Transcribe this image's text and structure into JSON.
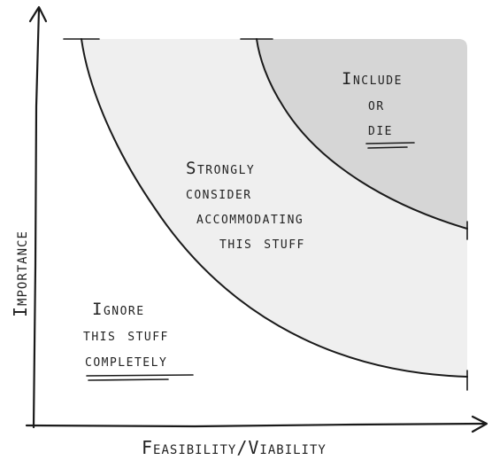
{
  "axes": {
    "x_label": "Feasibility/Viability",
    "y_label": "Importance"
  },
  "regions": {
    "outer": {
      "lines": [
        "Ignore",
        "this stuff",
        "completely"
      ],
      "color": "#ffffff"
    },
    "middle": {
      "lines": [
        "Strongly",
        "consider",
        "accommodating",
        "this stuff"
      ],
      "color": "#efefef"
    },
    "inner": {
      "lines": [
        "Include",
        "or",
        "die"
      ],
      "color": "#d6d6d6"
    }
  },
  "colors": {
    "ink": "#1a1a1a",
    "background": "#ffffff"
  }
}
